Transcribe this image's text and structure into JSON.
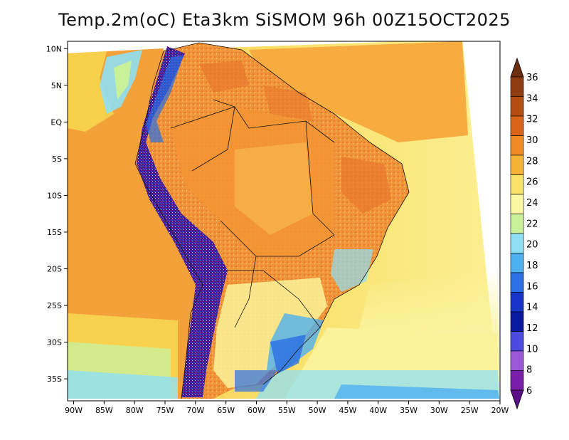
{
  "title": "Temp.2m(oC) Eta3km SiSMOM 96h 00Z15OCT2025",
  "map": {
    "lat_labels": [
      "10N",
      "5N",
      "EQ",
      "5S",
      "10S",
      "15S",
      "20S",
      "25S",
      "30S",
      "35S"
    ],
    "lat_values": [
      10,
      5,
      0,
      -5,
      -10,
      -15,
      -20,
      -25,
      -30,
      -35
    ],
    "lon_labels": [
      "90W",
      "85W",
      "80W",
      "75W",
      "70W",
      "65W",
      "60W",
      "55W",
      "50W",
      "45W",
      "40W",
      "35W",
      "30W",
      "25W",
      "20W"
    ],
    "lon_values": [
      -90,
      -85,
      -80,
      -75,
      -70,
      -65,
      -60,
      -55,
      -50,
      -45,
      -40,
      -35,
      -30,
      -25,
      -20
    ],
    "lat_range": [
      -38,
      11
    ],
    "lon_range": [
      -91,
      -20
    ]
  },
  "colorbar": {
    "labels": [
      "36",
      "34",
      "32",
      "30",
      "28",
      "26",
      "24",
      "22",
      "20",
      "18",
      "16",
      "14",
      "12",
      "10",
      "8",
      "6"
    ],
    "colors": [
      "#6b2e10",
      "#8f3c10",
      "#b34e12",
      "#d9641a",
      "#f08a25",
      "#f7b338",
      "#f8e26a",
      "#fbf7a3",
      "#c9f19a",
      "#8fe0f4",
      "#4fb0ef",
      "#2a6fe3",
      "#1635c8",
      "#0a1aa0",
      "#4a4ae0",
      "#9b59d9",
      "#7a1ea9",
      "#5a0f86"
    ],
    "units": "oC"
  },
  "colors": {
    "ocean_warm": "#f6a43a",
    "ocean_mid": "#f8d24f",
    "ocean_cool": "#fbf39a",
    "land_hot": "#f08a25",
    "andes": "#5a0f86"
  }
}
